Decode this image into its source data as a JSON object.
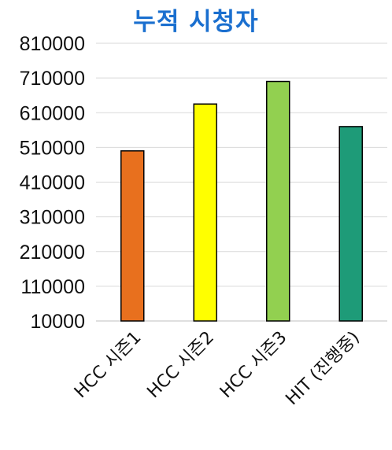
{
  "chart_data": {
    "type": "bar",
    "title": "누적 시청자",
    "categories": [
      "HCC 시즌1",
      "HCC 시즌2",
      "HCC 시즌3",
      "HIT (진행중)"
    ],
    "values": [
      500000,
      635000,
      700000,
      570000
    ],
    "bar_colors": [
      "#e8701e",
      "#ffff00",
      "#92d050",
      "#1e9b78"
    ],
    "title_color": "#1a6fcf",
    "ylim": [
      10000,
      810000
    ],
    "yticks": [
      "810000",
      "710000",
      "610000",
      "510000",
      "410000",
      "310000",
      "210000",
      "110000",
      "10000"
    ],
    "grid": true,
    "legend": "none",
    "xlabel": "",
    "ylabel": ""
  }
}
